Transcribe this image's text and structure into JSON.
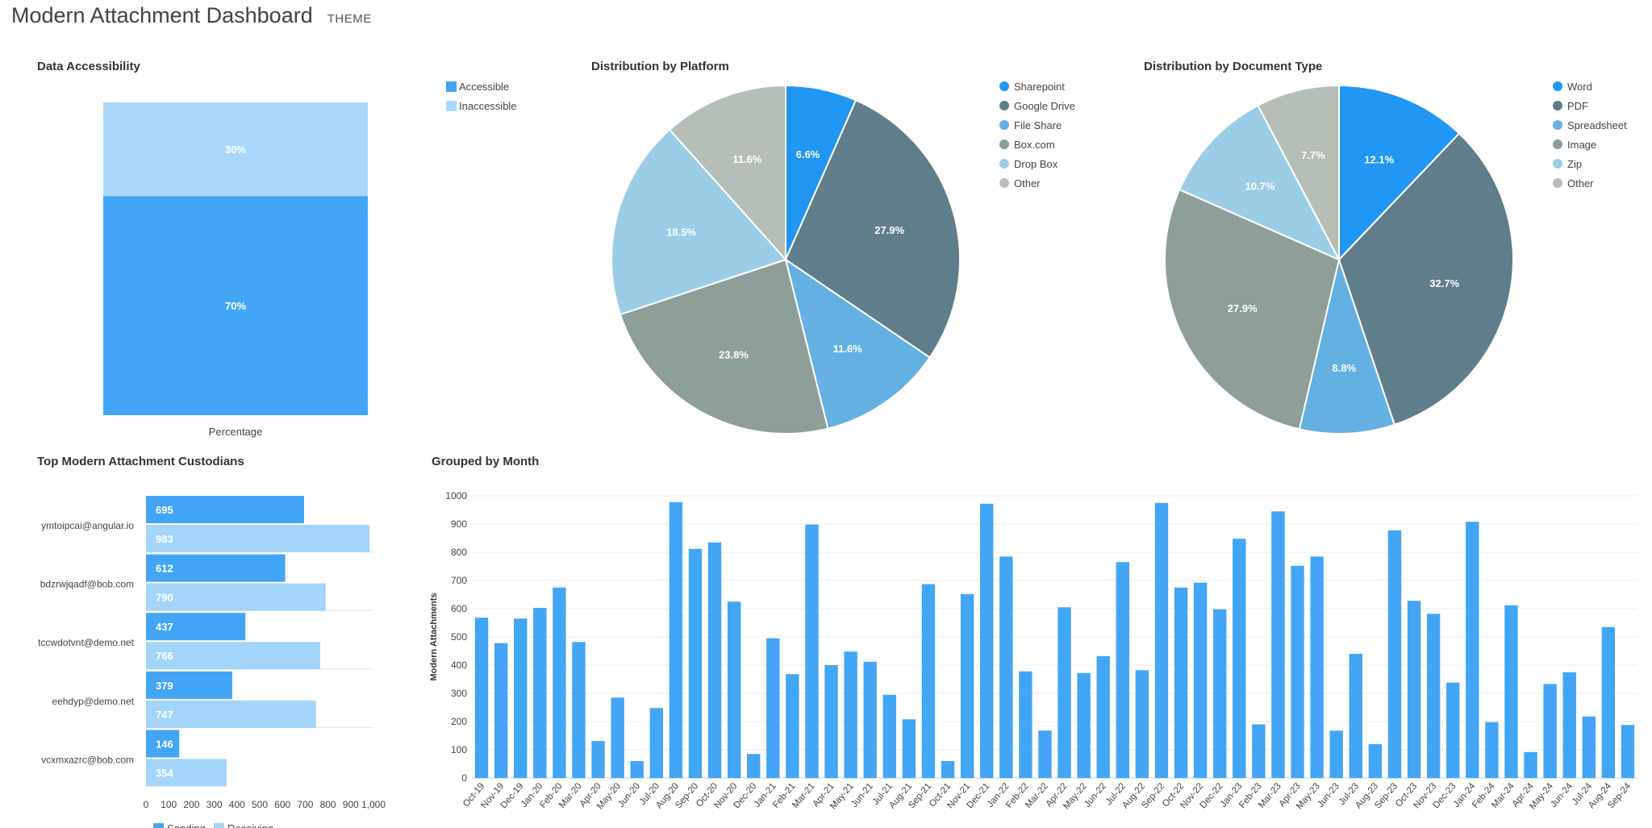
{
  "header": {
    "title": "Modern Attachment Dashboard",
    "theme_label": "THEME"
  },
  "colors": {
    "accessible": "#42a5f5",
    "inaccessible": "#aad8fc",
    "sending": "#42a5f5",
    "receiving": "#a3d4fa",
    "month_bar": "#42a5f5",
    "pie": [
      "#2196f3",
      "#607d8b",
      "#64b0e3",
      "#8e9e98",
      "#9ccde6",
      "#b6bfb7"
    ]
  },
  "chart_data": [
    {
      "id": "accessibility",
      "type": "bar",
      "stacked": true,
      "title": "Data Accessibility",
      "categories": [
        "Percentage"
      ],
      "series": [
        {
          "name": "Accessible",
          "values": [
            70
          ],
          "label": "70%"
        },
        {
          "name": "Inaccessible",
          "values": [
            30
          ],
          "label": "30%"
        }
      ],
      "legend": "top-right"
    },
    {
      "id": "platform",
      "type": "pie",
      "title": "Distribution by Platform",
      "labels": [
        "Sharepoint",
        "Google Drive",
        "File Share",
        "Box.com",
        "Drop Box",
        "Other"
      ],
      "values": [
        6.6,
        27.9,
        11.6,
        23.8,
        18.5,
        11.6
      ],
      "value_labels": [
        "6.6%",
        "27.9%",
        "11.6%",
        "23.8%",
        "18.5%",
        "11.6%"
      ],
      "legend": "right"
    },
    {
      "id": "doctype",
      "type": "pie",
      "title": "Distribution by Document Type",
      "labels": [
        "Word",
        "PDF",
        "Spreadsheet",
        "Image",
        "Zip",
        "Other"
      ],
      "values": [
        12.1,
        32.7,
        8.8,
        27.9,
        10.7,
        7.7
      ],
      "value_labels": [
        "12.1%",
        "32.7%",
        "8.8%",
        "27.9%",
        "10.7%",
        "7.7%"
      ],
      "legend": "right"
    },
    {
      "id": "custodians",
      "type": "bar",
      "orientation": "horizontal",
      "title": "Top Modern Attachment Custodians",
      "categories": [
        "ymtoipcai@angular.io",
        "bdzrwjqadf@bob.com",
        "tccwdotvnt@demo.net",
        "eehdyp@demo.net",
        "vcxmxazrc@bob.com"
      ],
      "series": [
        {
          "name": "Sending",
          "values": [
            695,
            612,
            437,
            379,
            146
          ]
        },
        {
          "name": "Receiving",
          "values": [
            983,
            790,
            766,
            747,
            354
          ]
        }
      ],
      "xlim": [
        0,
        1000
      ],
      "xticks": [
        "0",
        "100",
        "200",
        "300",
        "400",
        "500",
        "600",
        "700",
        "800",
        "900",
        "1,000"
      ],
      "legend": "bottom"
    },
    {
      "id": "monthly",
      "type": "bar",
      "title": "Grouped by Month",
      "ylabel": "Modern Attachments",
      "ylim": [
        0,
        1000
      ],
      "yticks": [
        "0",
        "100",
        "200",
        "300",
        "400",
        "500",
        "600",
        "700",
        "800",
        "900",
        "1000"
      ],
      "categories": [
        "Oct-19",
        "Nov-19",
        "Dec-19",
        "Jan-20",
        "Feb-20",
        "Mar-20",
        "Apr-20",
        "May-20",
        "Jun-20",
        "Jul-20",
        "Aug-20",
        "Sep-20",
        "Oct-20",
        "Nov-20",
        "Dec-20",
        "Jan-21",
        "Feb-21",
        "Mar-21",
        "Apr-21",
        "May-21",
        "Jun-21",
        "Jul-21",
        "Aug-21",
        "Sep-21",
        "Oct-21",
        "Nov-21",
        "Dec-21",
        "Jan-22",
        "Feb-22",
        "Mar-22",
        "Apr-22",
        "May-22",
        "Jun-22",
        "Jul-22",
        "Aug-22",
        "Sep-22",
        "Oct-22",
        "Nov-22",
        "Dec-22",
        "Jan-23",
        "Feb-23",
        "Mar-23",
        "Apr-23",
        "May-23",
        "Jun-23",
        "Jul-23",
        "Aug-23",
        "Sep-23",
        "Oct-23",
        "Nov-23",
        "Dec-23",
        "Jan-24",
        "Feb-24",
        "Mar-24",
        "Apr-24",
        "May-24",
        "Jun-24",
        "Jul-24",
        "Aug-24",
        "Sep-24"
      ],
      "values": [
        568,
        478,
        565,
        603,
        675,
        482,
        131,
        285,
        60,
        248,
        978,
        812,
        835,
        625,
        85,
        495,
        368,
        898,
        400,
        448,
        412,
        295,
        208,
        687,
        60,
        652,
        972,
        785,
        378,
        168,
        605,
        372,
        432,
        765,
        382,
        975,
        675,
        692,
        598,
        848,
        190,
        945,
        752,
        785,
        168,
        440,
        120,
        878,
        628,
        582,
        338,
        908,
        198,
        612,
        92,
        333,
        375,
        218,
        535,
        188
      ],
      "legend": "none"
    }
  ]
}
